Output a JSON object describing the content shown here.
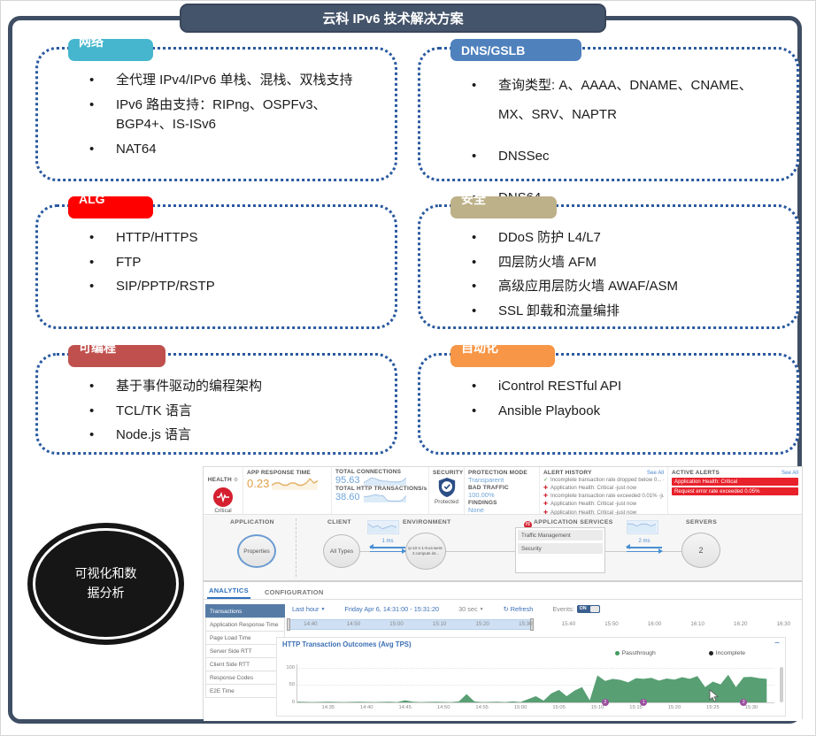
{
  "slide": {
    "title": "云科 IPv6 技术解决方案",
    "visualization_label": "可视化和数据分析",
    "boxes": [
      {
        "id": "network",
        "label": "网络",
        "color": "#45b6cd",
        "bullets": [
          "全代理 IPv4/IPv6 单栈、混栈、双栈支持",
          "IPv6 路由支持：RIPng、OSPFv3、BGP4+、IS-ISv6",
          "NAT64"
        ]
      },
      {
        "id": "dns",
        "label": "DNS/GSLB",
        "color": "#4f81bd",
        "bullets": [
          "查询类型: A、AAAA、DNAME、CNAME、MX、SRV、NAPTR",
          "DNSSec",
          "DNS64"
        ]
      },
      {
        "id": "alg",
        "label": "ALG",
        "color": "#fe0000",
        "bullets": [
          "HTTP/HTTPS",
          "FTP",
          "SIP/PPTP/RSTP"
        ]
      },
      {
        "id": "security",
        "label": "安全",
        "color": "#bdb189",
        "bullets": [
          "DDoS 防护 L4/L7",
          "四层防火墙 AFM",
          "高级应用层防火墙 AWAF/ASM",
          "SSL 卸载和流量编排"
        ]
      },
      {
        "id": "programmable",
        "label": "可编程",
        "color": "#c0504d",
        "bullets": [
          "基于事件驱动的编程架构",
          "TCL/TK 语言",
          "Node.js 语言"
        ]
      },
      {
        "id": "automation",
        "label": "自动化",
        "color": "#f79646",
        "bullets": [
          "iControl RESTful API",
          "Ansible Playbook"
        ]
      }
    ]
  },
  "dashboard": {
    "health": {
      "label": "HEALTH",
      "status": "Critical"
    },
    "app_response_time": {
      "label": "APP RESPONSE TIME",
      "value": "0.23",
      "spark": [
        2,
        3,
        3,
        2,
        2,
        3,
        3,
        2,
        2,
        3,
        5,
        3,
        4
      ]
    },
    "total_connections": {
      "label": "TOTAL CONNECTIONS",
      "value": "95.63",
      "spark": [
        3,
        6,
        9,
        8,
        6,
        5,
        5,
        4,
        4,
        4,
        5,
        9
      ]
    },
    "total_http": {
      "label": "TOTAL HTTP TRANSACTIONS/s",
      "value": "38.60",
      "spark": [
        6,
        6,
        7,
        8,
        7,
        7,
        2,
        1,
        1,
        1,
        2,
        7
      ]
    },
    "security": {
      "label": "SECURITY",
      "status": "Protected"
    },
    "protection": {
      "mode_label": "PROTECTION MODE",
      "mode": "Transparent",
      "bad_label": "BAD TRAFFIC",
      "bad": "100.00%",
      "findings_label": "FINDINGS",
      "findings": "None"
    },
    "alert_history": {
      "title": "ALERT HISTORY",
      "see_all": "See All",
      "items": [
        {
          "icon": "check-icon",
          "text": "Incomplete transaction rate dropped below 0... -just now"
        },
        {
          "icon": "alert-icon",
          "text": "Application Health: Critical -just now"
        },
        {
          "icon": "alert-icon",
          "text": "Incomplete transaction rate exceeded 0.01% -just now"
        },
        {
          "icon": "alert-icon",
          "text": "Application Health: Critical -just now"
        },
        {
          "icon": "alert-icon",
          "text": "Application Health: Critical -just now"
        }
      ]
    },
    "active_alerts": {
      "title": "ACTIVE ALERTS",
      "see_all": "See All",
      "items": [
        "Application Health: Critical",
        "Request error rate exceeded 0.05%"
      ]
    },
    "topology": {
      "application_label": "APPLICATION",
      "application_node": "Properties",
      "client_label": "CLIENT",
      "client_node": "All Types",
      "client_latency": "1 ms",
      "client_spark": [
        5,
        3,
        4,
        2,
        3,
        4,
        3
      ],
      "environment_label": "ENVIRONMENT",
      "environment_node": "ip-10-1-1-9.us-west-2.compute.int...",
      "services_label": "APPLICATION SERVICES",
      "services_brand": "f5",
      "services": [
        "Traffic Management",
        "Security"
      ],
      "servers_label": "SERVERS",
      "servers_node": "2",
      "server_latency": "2 ms",
      "server_spark": [
        4,
        4,
        3,
        4,
        4,
        3,
        4
      ]
    },
    "analytics": {
      "tabs": [
        "ANALYTICS",
        "CONFIGURATION"
      ],
      "active_tab": "ANALYTICS",
      "sidebar": [
        "Transactions",
        "Application Response Time",
        "Page Load Time",
        "Server Side RTT",
        "Client Side RTT",
        "Response Codes",
        "E2E Time"
      ],
      "selected_sidebar": "Transactions",
      "time_range": "Last hour",
      "date_range": "Friday Apr 6, 14:31:00 - 15:31:20",
      "interval": "30 sec",
      "refresh_label": "Refresh",
      "events_label": "Events:",
      "events_state": "ON",
      "timeline_ticks": [
        "14:40",
        "14:50",
        "15:00",
        "15:10",
        "15:20",
        "15:30",
        "15:40",
        "15:50",
        "16:00",
        "16:10",
        "16:20",
        "16:30"
      ]
    }
  },
  "chart_data": {
    "type": "area",
    "title": "HTTP Transaction Outcomes (Avg TPS)",
    "ylabel": "Avg TPS",
    "ylim": [
      0,
      110
    ],
    "yticks": [
      "100",
      "50",
      "0"
    ],
    "x_start": "14:31",
    "x_end": "15:33",
    "x_ticks": [
      "14:35",
      "14:40",
      "14:45",
      "14:50",
      "14:55",
      "15:00",
      "15:05",
      "15:10",
      "15:15",
      "15:20",
      "15:25",
      "15:30"
    ],
    "legend": [
      {
        "name": "Passthrough",
        "color": "#3f9c5c"
      },
      {
        "name": "Incomplete",
        "color": "#222222"
      }
    ],
    "series": [
      {
        "name": "Passthrough",
        "color": "#4a9767",
        "points": [
          [
            "14:31",
            2
          ],
          [
            "14:33",
            1
          ],
          [
            "14:35",
            2
          ],
          [
            "14:37",
            1
          ],
          [
            "14:39",
            2
          ],
          [
            "14:41",
            1
          ],
          [
            "14:43",
            2
          ],
          [
            "14:44",
            1
          ],
          [
            "14:45",
            6
          ],
          [
            "14:46",
            2
          ],
          [
            "14:47",
            1
          ],
          [
            "14:49",
            2
          ],
          [
            "14:51",
            1
          ],
          [
            "14:52",
            3
          ],
          [
            "14:53",
            24
          ],
          [
            "14:54",
            3
          ],
          [
            "14:55",
            1
          ],
          [
            "14:57",
            2
          ],
          [
            "14:58",
            1
          ],
          [
            "14:59",
            3
          ],
          [
            "15:00",
            1
          ],
          [
            "15:02",
            18
          ],
          [
            "15:03",
            5
          ],
          [
            "15:04",
            26
          ],
          [
            "15:05",
            36
          ],
          [
            "15:06",
            18
          ],
          [
            "15:07",
            34
          ],
          [
            "15:08",
            44
          ],
          [
            "15:09",
            6
          ],
          [
            "15:10",
            78
          ],
          [
            "15:11",
            62
          ],
          [
            "15:12",
            68
          ],
          [
            "15:13",
            65
          ],
          [
            "15:14",
            58
          ],
          [
            "15:15",
            70
          ],
          [
            "15:16",
            68
          ],
          [
            "15:17",
            71
          ],
          [
            "15:18",
            63
          ],
          [
            "15:19",
            69
          ],
          [
            "15:20",
            66
          ],
          [
            "15:21",
            73
          ],
          [
            "15:22",
            68
          ],
          [
            "15:23",
            76
          ],
          [
            "15:24",
            44
          ],
          [
            "15:25",
            60
          ],
          [
            "15:26",
            52
          ],
          [
            "15:27",
            80
          ],
          [
            "15:28",
            44
          ],
          [
            "15:29",
            73
          ],
          [
            "15:30",
            74
          ],
          [
            "15:31",
            70
          ],
          [
            "15:32",
            68
          ]
        ]
      },
      {
        "name": "Incomplete",
        "color": "#222222",
        "points": [
          [
            "14:31",
            0
          ],
          [
            "15:32",
            0
          ]
        ]
      }
    ],
    "events": [
      {
        "time": "15:11",
        "label": "2"
      },
      {
        "time": "15:16",
        "label": "1"
      },
      {
        "time": "15:29",
        "label": "2"
      }
    ]
  }
}
